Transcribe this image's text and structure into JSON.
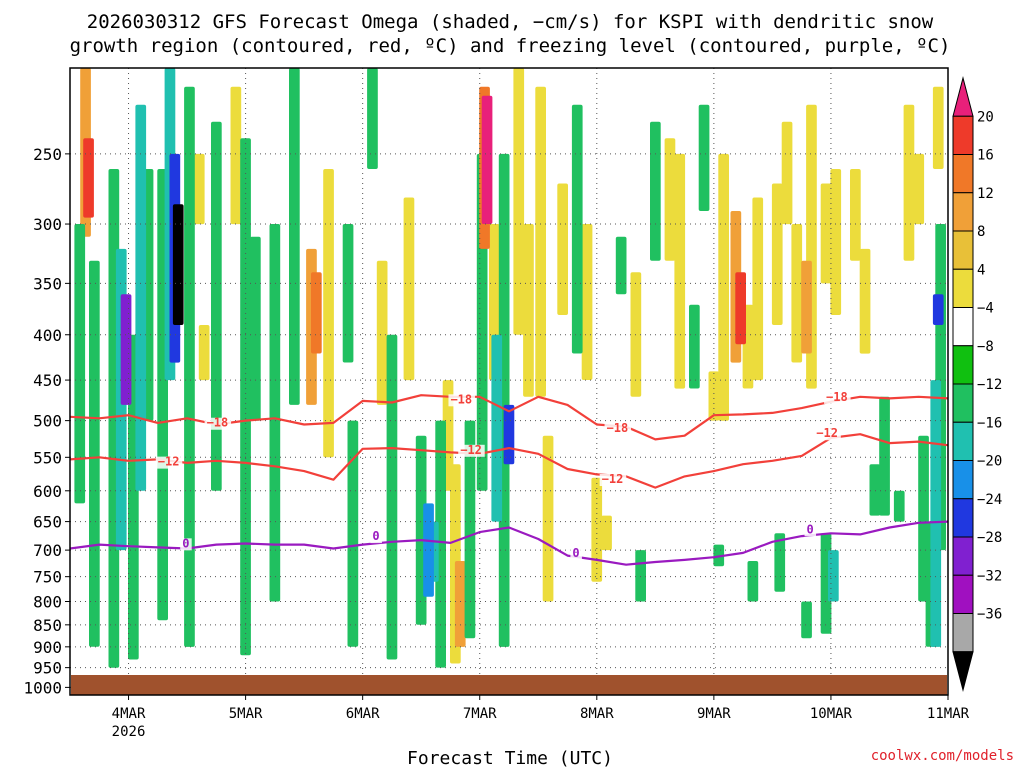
{
  "title": {
    "line1": "2026030312 GFS Forecast Omega (shaded, −cm/s) for KSPI with dendritic snow",
    "line2": "growth region (contoured, red, ºC) and freezing level (contoured, purple, ºC)"
  },
  "xlabel": "Forecast Time (UTC)",
  "credit": "coolwx.com/models",
  "colors": {
    "temp_contour": "#f2403a",
    "freezing_contour": "#9a1ac0",
    "ground": "#a0522d",
    "grid": "#555555"
  },
  "chart_data": {
    "type": "heatmap",
    "x_axis": {
      "ticks": [
        {
          "label": "4MAR",
          "sub": "2026",
          "t": 12
        },
        {
          "label": "5MAR",
          "sub": "",
          "t": 36
        },
        {
          "label": "6MAR",
          "sub": "",
          "t": 60
        },
        {
          "label": "7MAR",
          "sub": "",
          "t": 84
        },
        {
          "label": "8MAR",
          "sub": "",
          "t": 108
        },
        {
          "label": "9MAR",
          "sub": "",
          "t": 132
        },
        {
          "label": "10MAR",
          "sub": "",
          "t": 156
        },
        {
          "label": "11MAR",
          "sub": "",
          "t": 180
        }
      ],
      "range_hours": [
        0,
        180
      ]
    },
    "y_axis": {
      "levels": [
        250,
        300,
        350,
        400,
        450,
        500,
        550,
        600,
        650,
        700,
        750,
        800,
        850,
        900,
        950,
        1000
      ],
      "range_hpa": [
        200,
        1020
      ],
      "scale": "log-pressure"
    },
    "colorbar": {
      "labels": [
        "20",
        "16",
        "12",
        "8",
        "4",
        "−4",
        "−8",
        "−12",
        "−16",
        "−20",
        "−24",
        "−28",
        "−32",
        "−36"
      ],
      "colors": [
        "#e8207a",
        "#ee3a2a",
        "#f07828",
        "#f0a038",
        "#e8c038",
        "#ecdc3c",
        "#ffffff",
        "#10c010",
        "#20c060",
        "#20c0b0",
        "#1890e8",
        "#2038e0",
        "#8020d0",
        "#a010c0",
        "#a8a8a8",
        "#000000"
      ]
    },
    "contours": [
      {
        "name": "-18",
        "label": "−18",
        "color": "#f2403a",
        "t": [
          0,
          6,
          12,
          18,
          24,
          30,
          36,
          42,
          48,
          54,
          60,
          66,
          72,
          78,
          84,
          90,
          96,
          102,
          108,
          114,
          120,
          126,
          132,
          138,
          144,
          150,
          156,
          162,
          168,
          174,
          180
        ],
        "p": [
          495,
          497,
          493,
          503,
          497,
          505,
          500,
          497,
          505,
          503,
          475,
          477,
          468,
          470,
          470,
          488,
          470,
          480,
          505,
          508,
          525,
          520,
          493,
          492,
          490,
          484,
          476,
          470,
          472,
          470,
          472
        ]
      },
      {
        "name": "-12",
        "label": "−12",
        "color": "#f2403a",
        "t": [
          0,
          6,
          12,
          18,
          24,
          30,
          36,
          42,
          48,
          54,
          60,
          66,
          72,
          78,
          84,
          90,
          96,
          102,
          108,
          114,
          120,
          126,
          132,
          138,
          144,
          150,
          156,
          162,
          168,
          174,
          180
        ],
        "p": [
          553,
          550,
          555,
          553,
          558,
          555,
          558,
          563,
          570,
          583,
          538,
          537,
          540,
          543,
          545,
          537,
          545,
          567,
          575,
          578,
          595,
          578,
          570,
          560,
          555,
          548,
          523,
          518,
          530,
          528,
          533
        ]
      },
      {
        "name": "0",
        "label": "0",
        "color": "#9a1ac0",
        "t": [
          0,
          6,
          12,
          18,
          24,
          30,
          36,
          42,
          48,
          54,
          60,
          66,
          72,
          78,
          84,
          90,
          96,
          102,
          108,
          114,
          120,
          126,
          132,
          138,
          144,
          150,
          156,
          162,
          168,
          174,
          180
        ],
        "p": [
          697,
          690,
          693,
          695,
          697,
          690,
          688,
          690,
          690,
          697,
          690,
          685,
          682,
          687,
          668,
          660,
          680,
          710,
          718,
          727,
          722,
          718,
          713,
          705,
          685,
          675,
          670,
          672,
          660,
          652,
          650
        ]
      }
    ],
    "contour_labels": [
      {
        "text": "−18",
        "t": 28,
        "p": 508,
        "color": "#f2403a"
      },
      {
        "text": "−18",
        "t": 78,
        "p": 478,
        "color": "#f2403a"
      },
      {
        "text": "−18",
        "t": 110,
        "p": 515,
        "color": "#f2403a"
      },
      {
        "text": "−18",
        "t": 155,
        "p": 475,
        "color": "#f2403a"
      },
      {
        "text": "−12",
        "t": 18,
        "p": 562,
        "color": "#f2403a"
      },
      {
        "text": "−12",
        "t": 80,
        "p": 545,
        "color": "#f2403a"
      },
      {
        "text": "−12",
        "t": 109,
        "p": 588,
        "color": "#f2403a"
      },
      {
        "text": "−12",
        "t": 153,
        "p": 522,
        "color": "#f2403a"
      },
      {
        "text": "0",
        "t": 23,
        "p": 695,
        "color": "#9a1ac0"
      },
      {
        "text": "0",
        "t": 62,
        "p": 682,
        "color": "#9a1ac0"
      },
      {
        "text": "0",
        "t": 103,
        "p": 713,
        "color": "#9a1ac0"
      },
      {
        "text": "0",
        "t": 151,
        "p": 670,
        "color": "#9a1ac0"
      }
    ],
    "shading_cells": [
      {
        "t": 3.2,
        "p0": 200,
        "p1": 310,
        "v": 8
      },
      {
        "t": 3.8,
        "p0": 240,
        "p1": 295,
        "v": 16
      },
      {
        "t": 2,
        "p0": 300,
        "p1": 620,
        "v": -8
      },
      {
        "t": 5,
        "p0": 330,
        "p1": 900,
        "v": -8
      },
      {
        "t": 9,
        "p0": 260,
        "p1": 950,
        "v": -8
      },
      {
        "t": 10.5,
        "p0": 320,
        "p1": 700,
        "v": -12
      },
      {
        "t": 11.5,
        "p0": 360,
        "p1": 480,
        "v": -24
      },
      {
        "t": 13,
        "p0": 400,
        "p1": 930,
        "v": -8
      },
      {
        "t": 14.5,
        "p0": 220,
        "p1": 600,
        "v": -12
      },
      {
        "t": 16,
        "p0": 260,
        "p1": 500,
        "v": -8
      },
      {
        "t": 19,
        "p0": 260,
        "p1": 840,
        "v": -8
      },
      {
        "t": 20.5,
        "p0": 200,
        "p1": 450,
        "v": -12
      },
      {
        "t": 21.5,
        "p0": 250,
        "p1": 430,
        "v": -20
      },
      {
        "t": 22.2,
        "p0": 285,
        "p1": 390,
        "v": -36
      },
      {
        "t": 24.5,
        "p0": 210,
        "p1": 900,
        "v": -8
      },
      {
        "t": 26.5,
        "p0": 250,
        "p1": 300,
        "v": 4
      },
      {
        "t": 27.5,
        "p0": 390,
        "p1": 450,
        "v": 4
      },
      {
        "t": 30,
        "p0": 230,
        "p1": 600,
        "v": -8
      },
      {
        "t": 34,
        "p0": 210,
        "p1": 300,
        "v": 4
      },
      {
        "t": 36,
        "p0": 240,
        "p1": 920,
        "v": -8
      },
      {
        "t": 38,
        "p0": 310,
        "p1": 500,
        "v": -8
      },
      {
        "t": 42,
        "p0": 300,
        "p1": 800,
        "v": -8
      },
      {
        "t": 46,
        "p0": 200,
        "p1": 480,
        "v": -8
      },
      {
        "t": 49.5,
        "p0": 320,
        "p1": 480,
        "v": 8
      },
      {
        "t": 50.5,
        "p0": 340,
        "p1": 420,
        "v": 12
      },
      {
        "t": 53,
        "p0": 260,
        "p1": 550,
        "v": 4
      },
      {
        "t": 57,
        "p0": 300,
        "p1": 430,
        "v": -8
      },
      {
        "t": 58,
        "p0": 500,
        "p1": 900,
        "v": -8
      },
      {
        "t": 62,
        "p0": 200,
        "p1": 260,
        "v": -8
      },
      {
        "t": 64,
        "p0": 330,
        "p1": 480,
        "v": 4
      },
      {
        "t": 66,
        "p0": 400,
        "p1": 930,
        "v": -8
      },
      {
        "t": 69.5,
        "p0": 280,
        "p1": 450,
        "v": 4
      },
      {
        "t": 72,
        "p0": 520,
        "p1": 850,
        "v": -8
      },
      {
        "t": 73.5,
        "p0": 620,
        "p1": 790,
        "v": -16
      },
      {
        "t": 74.5,
        "p0": 650,
        "p1": 760,
        "v": -12
      },
      {
        "t": 76,
        "p0": 500,
        "p1": 950,
        "v": -8
      },
      {
        "t": 77.5,
        "p0": 450,
        "p1": 600,
        "v": 4
      },
      {
        "t": 79,
        "p0": 560,
        "p1": 940,
        "v": 4
      },
      {
        "t": 80,
        "p0": 720,
        "p1": 900,
        "v": 8
      },
      {
        "t": 82,
        "p0": 500,
        "p1": 880,
        "v": -8
      },
      {
        "t": 84.5,
        "p0": 250,
        "p1": 600,
        "v": -8
      },
      {
        "t": 85,
        "p0": 210,
        "p1": 320,
        "v": 12
      },
      {
        "t": 85.5,
        "p0": 215,
        "p1": 300,
        "v": 20
      },
      {
        "t": 87,
        "p0": 300,
        "p1": 450,
        "v": 4
      },
      {
        "t": 87.5,
        "p0": 400,
        "p1": 650,
        "v": -12
      },
      {
        "t": 89,
        "p0": 250,
        "p1": 900,
        "v": -8
      },
      {
        "t": 90,
        "p0": 480,
        "p1": 560,
        "v": -20
      },
      {
        "t": 92,
        "p0": 200,
        "p1": 400,
        "v": 4
      },
      {
        "t": 94,
        "p0": 300,
        "p1": 470,
        "v": 4
      },
      {
        "t": 96.5,
        "p0": 210,
        "p1": 470,
        "v": 4
      },
      {
        "t": 98,
        "p0": 520,
        "p1": 800,
        "v": 4
      },
      {
        "t": 101,
        "p0": 270,
        "p1": 380,
        "v": 4
      },
      {
        "t": 104,
        "p0": 220,
        "p1": 420,
        "v": -8
      },
      {
        "t": 106,
        "p0": 300,
        "p1": 450,
        "v": 4
      },
      {
        "t": 108,
        "p0": 580,
        "p1": 760,
        "v": 4
      },
      {
        "t": 113,
        "p0": 310,
        "p1": 360,
        "v": -8
      },
      {
        "t": 116,
        "p0": 340,
        "p1": 470,
        "v": 4
      },
      {
        "t": 120,
        "p0": 230,
        "p1": 330,
        "v": -8
      },
      {
        "t": 123,
        "p0": 240,
        "p1": 330,
        "v": 4
      },
      {
        "t": 125,
        "p0": 250,
        "p1": 460,
        "v": 4
      },
      {
        "t": 128,
        "p0": 370,
        "p1": 460,
        "v": -8
      },
      {
        "t": 130,
        "p0": 220,
        "p1": 290,
        "v": -8
      },
      {
        "t": 132,
        "p0": 440,
        "p1": 500,
        "v": 4
      },
      {
        "t": 134,
        "p0": 250,
        "p1": 500,
        "v": 4
      },
      {
        "t": 136.5,
        "p0": 290,
        "p1": 430,
        "v": 8
      },
      {
        "t": 137.5,
        "p0": 340,
        "p1": 410,
        "v": 16
      },
      {
        "t": 139,
        "p0": 370,
        "p1": 460,
        "v": 4
      },
      {
        "t": 141,
        "p0": 280,
        "p1": 450,
        "v": 4
      },
      {
        "t": 145,
        "p0": 270,
        "p1": 390,
        "v": 4
      },
      {
        "t": 147,
        "p0": 230,
        "p1": 300,
        "v": 4
      },
      {
        "t": 149,
        "p0": 300,
        "p1": 430,
        "v": 4
      },
      {
        "t": 151,
        "p0": 330,
        "p1": 420,
        "v": 8
      },
      {
        "t": 152,
        "p0": 220,
        "p1": 460,
        "v": 4
      },
      {
        "t": 155,
        "p0": 270,
        "p1": 350,
        "v": 4
      },
      {
        "t": 157,
        "p0": 260,
        "p1": 380,
        "v": 4
      },
      {
        "t": 161,
        "p0": 260,
        "p1": 330,
        "v": 4
      },
      {
        "t": 163,
        "p0": 320,
        "p1": 420,
        "v": 4
      },
      {
        "t": 165,
        "p0": 560,
        "p1": 640,
        "v": -8
      },
      {
        "t": 167,
        "p0": 470,
        "p1": 640,
        "v": -8
      },
      {
        "t": 170,
        "p0": 600,
        "p1": 650,
        "v": -8
      },
      {
        "t": 172,
        "p0": 220,
        "p1": 330,
        "v": 4
      },
      {
        "t": 174,
        "p0": 250,
        "p1": 300,
        "v": 4
      },
      {
        "t": 175,
        "p0": 520,
        "p1": 800,
        "v": -8
      },
      {
        "t": 176.5,
        "p0": 650,
        "p1": 900,
        "v": -8
      },
      {
        "t": 177.5,
        "p0": 450,
        "p1": 900,
        "v": -12
      },
      {
        "t": 178,
        "p0": 360,
        "p1": 390,
        "v": -20
      },
      {
        "t": 178.5,
        "p0": 300,
        "p1": 700,
        "v": -8
      },
      {
        "t": 178,
        "p0": 210,
        "p1": 260,
        "v": 4
      },
      {
        "t": 145.5,
        "p0": 670,
        "p1": 780,
        "v": -8
      },
      {
        "t": 155,
        "p0": 670,
        "p1": 870,
        "v": -8
      },
      {
        "t": 156.5,
        "p0": 700,
        "p1": 800,
        "v": -12
      },
      {
        "t": 151,
        "p0": 800,
        "p1": 880,
        "v": -8
      },
      {
        "t": 133,
        "p0": 690,
        "p1": 730,
        "v": -8
      },
      {
        "t": 140,
        "p0": 720,
        "p1": 800,
        "v": -8
      },
      {
        "t": 117,
        "p0": 700,
        "p1": 800,
        "v": -8
      },
      {
        "t": 110,
        "p0": 640,
        "p1": 700,
        "v": 4
      }
    ]
  }
}
